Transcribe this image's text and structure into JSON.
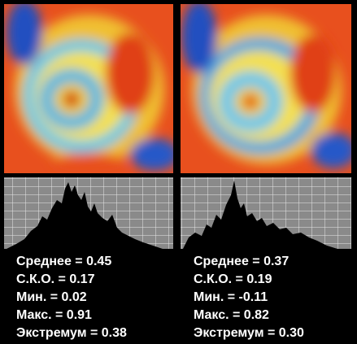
{
  "panels": [
    {
      "stats": [
        "Среднее = 0.45",
        "С.К.О. = 0.17",
        "Мин. = 0.02",
        "Макс. = 0.91",
        "Экстремум = 0.38"
      ]
    },
    {
      "stats": [
        "Среднее = 0.37",
        "С.К.О. = 0.19",
        "Мин. = -0.11",
        "Макс. = 0.82",
        "Экстремум = 0.30"
      ]
    }
  ]
}
